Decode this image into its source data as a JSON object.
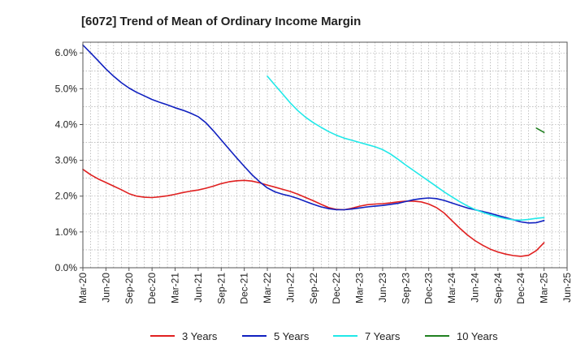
{
  "chart_data": {
    "type": "line",
    "title": "[6072]  Trend of Mean of Ordinary Income Margin",
    "xlabel": "",
    "ylabel": "",
    "ylim": [
      0,
      6.3
    ],
    "y_ticks": [
      0,
      1,
      2,
      3,
      4,
      5,
      6
    ],
    "y_tick_labels": [
      "0.0%",
      "1.0%",
      "2.0%",
      "3.0%",
      "4.0%",
      "5.0%",
      "6.0%"
    ],
    "x_tick_labels": [
      "Mar-20",
      "Jun-20",
      "Sep-20",
      "Dec-20",
      "Mar-21",
      "Jun-21",
      "Sep-21",
      "Dec-21",
      "Mar-22",
      "Jun-22",
      "Sep-22",
      "Dec-22",
      "Mar-23",
      "Jun-23",
      "Sep-23",
      "Dec-23",
      "Mar-24",
      "Jun-24",
      "Sep-24",
      "Dec-24",
      "Mar-25",
      "Jun-25"
    ],
    "grid": true,
    "legend_position": "bottom",
    "series": [
      {
        "name": "3 Years",
        "color": "#e02020",
        "x": [
          "Mar-20",
          "Apr-20",
          "May-20",
          "Jun-20",
          "Jul-20",
          "Aug-20",
          "Sep-20",
          "Oct-20",
          "Nov-20",
          "Dec-20",
          "Jan-21",
          "Feb-21",
          "Mar-21",
          "Apr-21",
          "May-21",
          "Jun-21",
          "Jul-21",
          "Aug-21",
          "Sep-21",
          "Oct-21",
          "Nov-21",
          "Dec-21",
          "Jan-22",
          "Feb-22",
          "Mar-22",
          "Apr-22",
          "May-22",
          "Jun-22",
          "Jul-22",
          "Aug-22",
          "Sep-22",
          "Oct-22",
          "Nov-22",
          "Dec-22",
          "Jan-23",
          "Feb-23",
          "Mar-23",
          "Apr-23",
          "May-23",
          "Jun-23",
          "Jul-23",
          "Aug-23",
          "Sep-23",
          "Oct-23",
          "Nov-23",
          "Dec-23",
          "Jan-24",
          "Feb-24",
          "Mar-24",
          "Apr-24",
          "May-24",
          "Jun-24",
          "Jul-24",
          "Aug-24",
          "Sep-24",
          "Oct-24",
          "Nov-24",
          "Dec-24",
          "Jan-25",
          "Feb-25",
          "Mar-25"
        ],
        "values": [
          2.75,
          2.6,
          2.48,
          2.38,
          2.28,
          2.18,
          2.07,
          2.0,
          1.97,
          1.96,
          1.98,
          2.01,
          2.05,
          2.1,
          2.14,
          2.17,
          2.22,
          2.28,
          2.35,
          2.4,
          2.43,
          2.44,
          2.42,
          2.37,
          2.31,
          2.25,
          2.19,
          2.13,
          2.05,
          1.96,
          1.87,
          1.77,
          1.68,
          1.63,
          1.62,
          1.66,
          1.72,
          1.76,
          1.78,
          1.79,
          1.81,
          1.84,
          1.86,
          1.86,
          1.84,
          1.78,
          1.68,
          1.53,
          1.32,
          1.11,
          0.92,
          0.76,
          0.63,
          0.52,
          0.44,
          0.38,
          0.34,
          0.32,
          0.35,
          0.48,
          0.7
        ]
      },
      {
        "name": "5 Years",
        "color": "#1020c0",
        "x": [
          "Mar-20",
          "Apr-20",
          "May-20",
          "Jun-20",
          "Jul-20",
          "Aug-20",
          "Sep-20",
          "Oct-20",
          "Nov-20",
          "Dec-20",
          "Jan-21",
          "Feb-21",
          "Mar-21",
          "Apr-21",
          "May-21",
          "Jun-21",
          "Jul-21",
          "Aug-21",
          "Sep-21",
          "Oct-21",
          "Nov-21",
          "Dec-21",
          "Jan-22",
          "Feb-22",
          "Mar-22",
          "Apr-22",
          "May-22",
          "Jun-22",
          "Jul-22",
          "Aug-22",
          "Sep-22",
          "Oct-22",
          "Nov-22",
          "Dec-22",
          "Jan-23",
          "Feb-23",
          "Mar-23",
          "Apr-23",
          "May-23",
          "Jun-23",
          "Jul-23",
          "Aug-23",
          "Sep-23",
          "Oct-23",
          "Nov-23",
          "Dec-23",
          "Jan-24",
          "Feb-24",
          "Mar-24",
          "Apr-24",
          "May-24",
          "Jun-24",
          "Jul-24",
          "Aug-24",
          "Sep-24",
          "Oct-24",
          "Nov-24",
          "Dec-24",
          "Jan-25",
          "Feb-25",
          "Mar-25"
        ],
        "values": [
          6.22,
          6.0,
          5.78,
          5.55,
          5.35,
          5.17,
          5.02,
          4.9,
          4.8,
          4.7,
          4.62,
          4.55,
          4.47,
          4.4,
          4.32,
          4.22,
          4.05,
          3.82,
          3.57,
          3.32,
          3.07,
          2.83,
          2.6,
          2.4,
          2.23,
          2.12,
          2.05,
          2.0,
          1.93,
          1.85,
          1.77,
          1.7,
          1.65,
          1.62,
          1.62,
          1.64,
          1.67,
          1.7,
          1.72,
          1.74,
          1.77,
          1.8,
          1.85,
          1.9,
          1.93,
          1.95,
          1.93,
          1.88,
          1.81,
          1.74,
          1.67,
          1.62,
          1.57,
          1.52,
          1.46,
          1.4,
          1.34,
          1.28,
          1.25,
          1.26,
          1.32
        ]
      },
      {
        "name": "7 Years",
        "color": "#20e8e8",
        "x": [
          "Mar-22",
          "Apr-22",
          "May-22",
          "Jun-22",
          "Jul-22",
          "Aug-22",
          "Sep-22",
          "Oct-22",
          "Nov-22",
          "Dec-22",
          "Jan-23",
          "Feb-23",
          "Mar-23",
          "Apr-23",
          "May-23",
          "Jun-23",
          "Jul-23",
          "Aug-23",
          "Sep-23",
          "Oct-23",
          "Nov-23",
          "Dec-23",
          "Jan-24",
          "Feb-24",
          "Mar-24",
          "Apr-24",
          "May-24",
          "Jun-24",
          "Jul-24",
          "Aug-24",
          "Sep-24",
          "Oct-24",
          "Nov-24",
          "Dec-24",
          "Jan-25",
          "Feb-25",
          "Mar-25"
        ],
        "values": [
          5.35,
          5.1,
          4.85,
          4.6,
          4.38,
          4.2,
          4.05,
          3.92,
          3.8,
          3.7,
          3.62,
          3.56,
          3.5,
          3.44,
          3.38,
          3.3,
          3.18,
          3.03,
          2.87,
          2.72,
          2.57,
          2.42,
          2.27,
          2.12,
          1.98,
          1.85,
          1.73,
          1.63,
          1.55,
          1.48,
          1.42,
          1.37,
          1.34,
          1.33,
          1.35,
          1.38,
          1.4
        ]
      },
      {
        "name": "10 Years",
        "color": "#208020",
        "x": [
          "Feb-25",
          "Mar-25"
        ],
        "values": [
          3.9,
          3.78
        ]
      }
    ]
  }
}
